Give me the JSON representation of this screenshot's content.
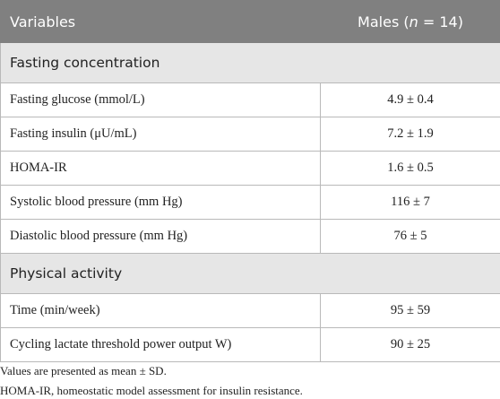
{
  "table": {
    "header": [
      "Variables",
      [
        "Males (",
        "n",
        " = 14)"
      ]
    ],
    "sections": [
      {
        "title": "Fasting concentration",
        "rows": [
          [
            "Fasting glucose (mmol/L)",
            "4.9 ± 0.4"
          ],
          [
            "Fasting insulin (μU/mL)",
            "7.2 ± 1.9"
          ],
          [
            "HOMA-IR",
            "1.6 ± 0.5"
          ],
          [
            "Systolic blood pressure (mm Hg)",
            "116 ± 7"
          ],
          [
            "Diastolic blood pressure (mm Hg)",
            "76 ± 5"
          ]
        ]
      },
      {
        "title": "Physical activity",
        "rows": [
          [
            "Time (min/week)",
            "95 ± 59"
          ],
          [
            "Cycling lactate threshold power output W)",
            "90 ± 25"
          ]
        ]
      }
    ]
  },
  "footnotes": [
    "Values are presented as mean ± SD.",
    "HOMA-IR, homeostatic model assessment for insulin resistance."
  ]
}
